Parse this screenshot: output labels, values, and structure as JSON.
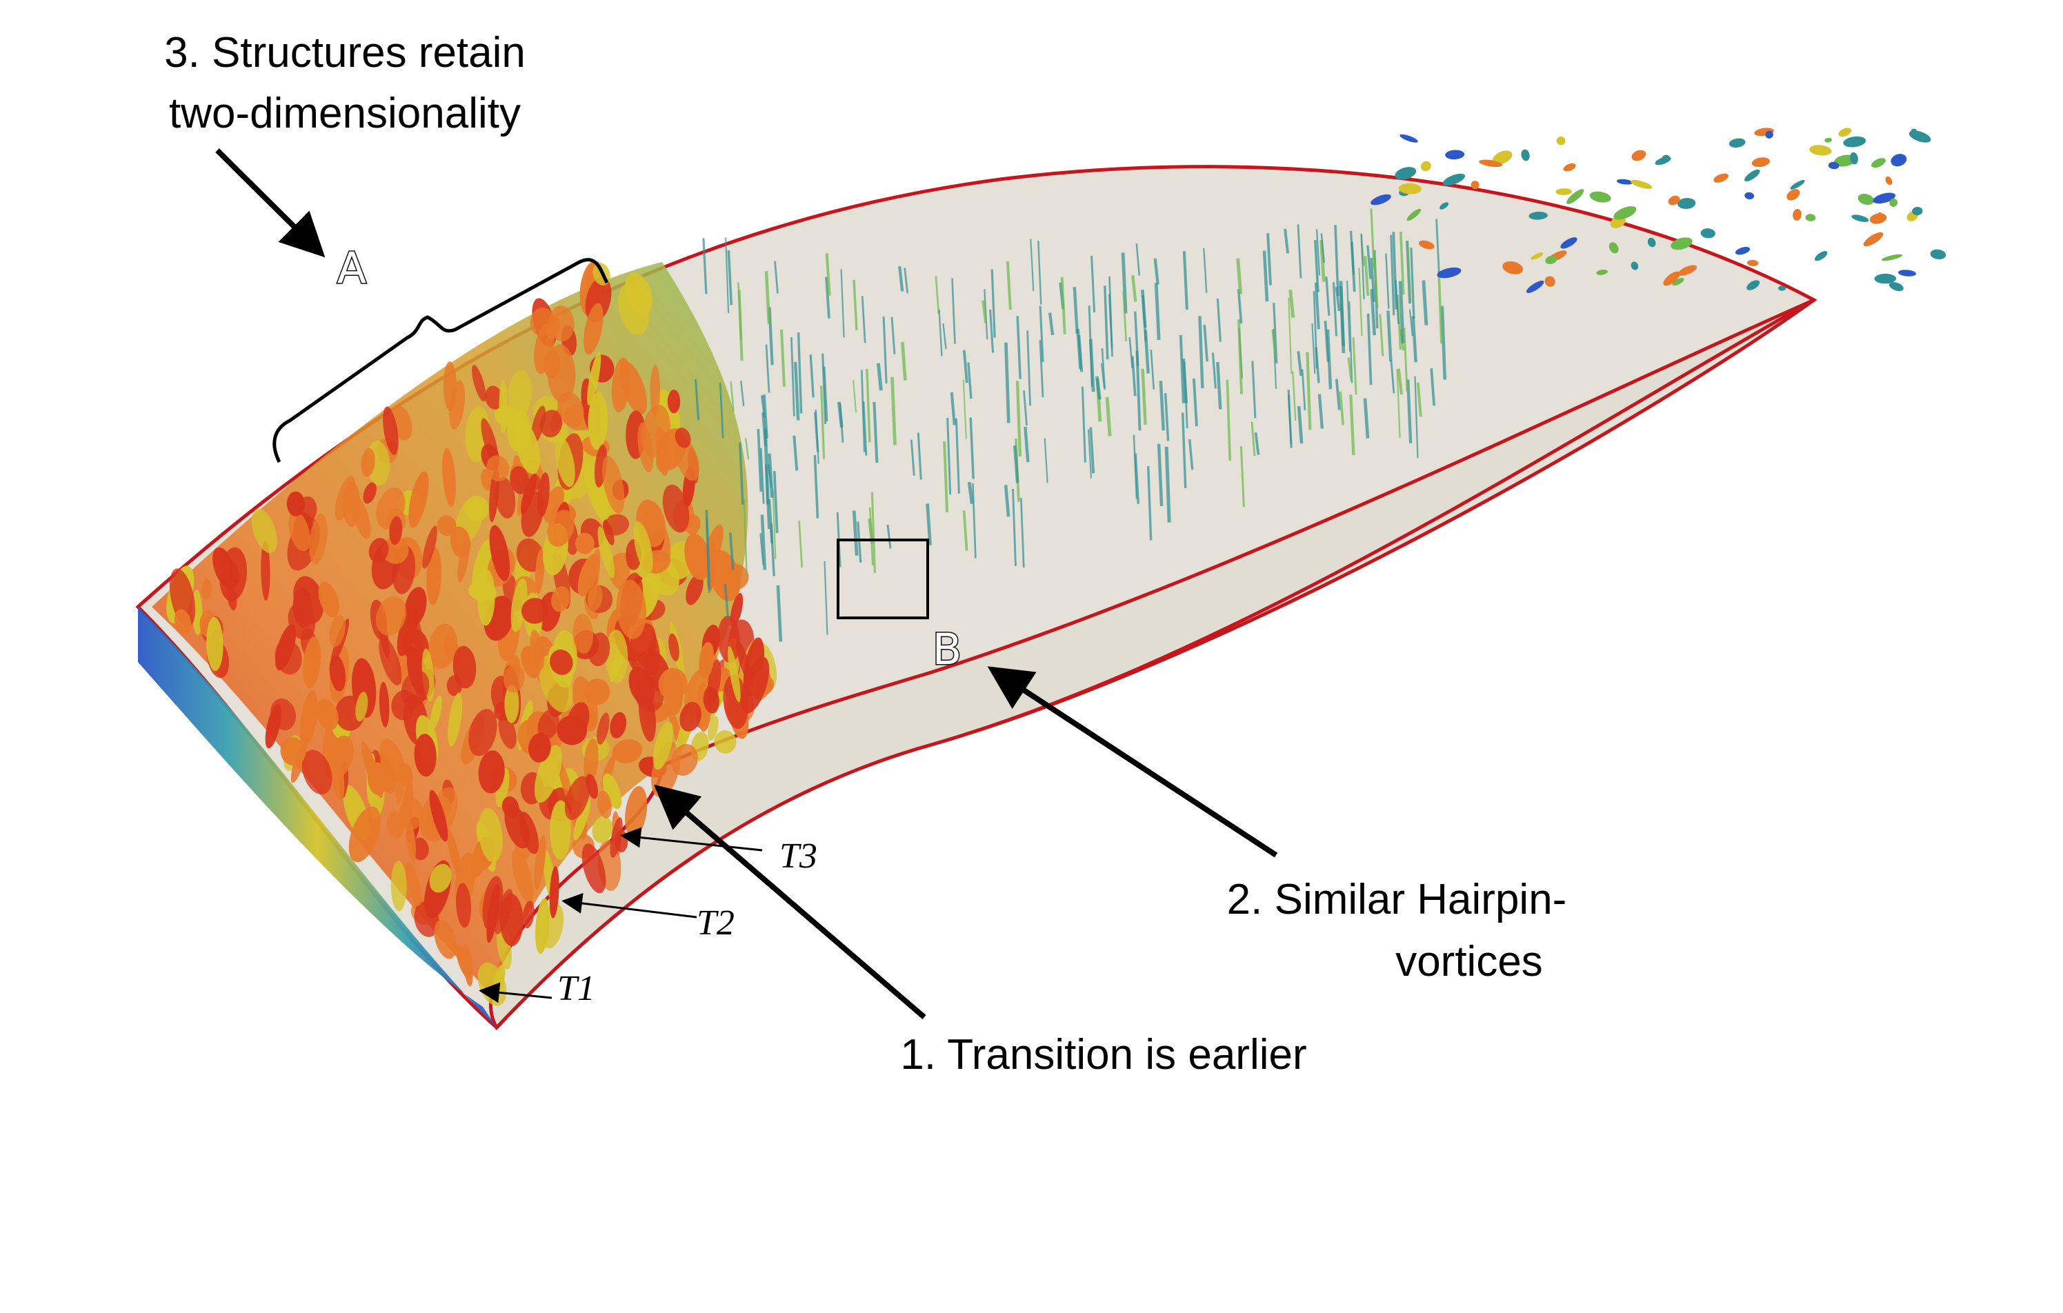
{
  "annotations": {
    "structures_line1": "3. Structures retain",
    "structures_line2": "two-dimensionality",
    "hairpin_line1": "2. Similar Hairpin-",
    "hairpin_line2": "vortices",
    "transition": "1. Transition is earlier",
    "region_a": "A",
    "region_b": "B",
    "t1": "T1",
    "t2": "T2",
    "t3": "T3"
  },
  "colors": {
    "airfoil_fill": "#e5e1d8",
    "airfoil_edge": "#c4161c",
    "vortex_red": "#d8361e",
    "vortex_orange": "#e8782a",
    "vortex_yellow": "#d6c22a",
    "vortex_green": "#6cb84a",
    "vortex_teal": "#2f8f96",
    "vortex_blue": "#2c58c8",
    "arrow": "#000000"
  }
}
